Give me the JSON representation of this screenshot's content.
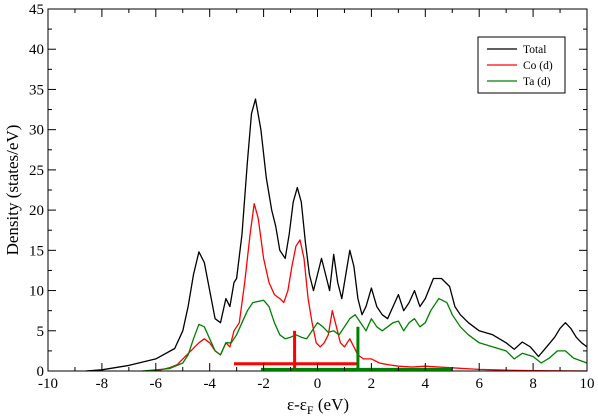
{
  "chart_data": {
    "type": "line",
    "title": "",
    "xlabel_main": "ε-ε",
    "xlabel_sub": "F",
    "xlabel_unit": " (eV)",
    "ylabel": "Density (states/eV)",
    "xlim": [
      -10,
      10
    ],
    "ylim": [
      0,
      45
    ],
    "x_ticks": [
      -10,
      -8,
      -6,
      -4,
      -2,
      0,
      2,
      4,
      6,
      8,
      10
    ],
    "y_ticks": [
      0,
      5,
      10,
      15,
      20,
      25,
      30,
      35,
      40,
      45
    ],
    "grid": false,
    "legend_position": "top-right",
    "series": [
      {
        "name": "Total",
        "color": "#000000",
        "points": [
          [
            -8.6,
            0.0
          ],
          [
            -8,
            0.15
          ],
          [
            -7,
            0.7
          ],
          [
            -6,
            1.5
          ],
          [
            -5.3,
            2.8
          ],
          [
            -5,
            5.0
          ],
          [
            -4.8,
            8.0
          ],
          [
            -4.6,
            12.0
          ],
          [
            -4.4,
            14.8
          ],
          [
            -4.2,
            13.5
          ],
          [
            -4.0,
            10.0
          ],
          [
            -3.8,
            6.5
          ],
          [
            -3.6,
            6.0
          ],
          [
            -3.4,
            9.0
          ],
          [
            -3.25,
            8.0
          ],
          [
            -3.1,
            11.0
          ],
          [
            -3.0,
            11.5
          ],
          [
            -2.8,
            17.0
          ],
          [
            -2.6,
            26.0
          ],
          [
            -2.45,
            32.0
          ],
          [
            -2.3,
            33.8
          ],
          [
            -2.1,
            30.0
          ],
          [
            -1.9,
            24.0
          ],
          [
            -1.7,
            20.0
          ],
          [
            -1.55,
            18.0
          ],
          [
            -1.4,
            15.0
          ],
          [
            -1.2,
            14.0
          ],
          [
            -1.05,
            17.0
          ],
          [
            -0.9,
            21.0
          ],
          [
            -0.75,
            22.8
          ],
          [
            -0.6,
            21.0
          ],
          [
            -0.45,
            16.0
          ],
          [
            -0.3,
            12.0
          ],
          [
            -0.15,
            10.0
          ],
          [
            0.0,
            12.0
          ],
          [
            0.15,
            14.0
          ],
          [
            0.3,
            12.0
          ],
          [
            0.45,
            10.0
          ],
          [
            0.6,
            14.5
          ],
          [
            0.75,
            11.0
          ],
          [
            0.9,
            9.0
          ],
          [
            1.05,
            12.0
          ],
          [
            1.2,
            15.0
          ],
          [
            1.35,
            13.0
          ],
          [
            1.5,
            9.0
          ],
          [
            1.65,
            7.0
          ],
          [
            1.8,
            8.0
          ],
          [
            2.0,
            10.3
          ],
          [
            2.2,
            8.0
          ],
          [
            2.4,
            7.0
          ],
          [
            2.6,
            6.5
          ],
          [
            2.8,
            8.0
          ],
          [
            3.0,
            9.5
          ],
          [
            3.2,
            7.5
          ],
          [
            3.4,
            8.5
          ],
          [
            3.6,
            10.0
          ],
          [
            3.8,
            8.0
          ],
          [
            4.0,
            9.0
          ],
          [
            4.3,
            11.5
          ],
          [
            4.6,
            11.5
          ],
          [
            4.9,
            10.5
          ],
          [
            5.1,
            8.0
          ],
          [
            5.3,
            7.0
          ],
          [
            5.6,
            6.0
          ],
          [
            6.0,
            5.0
          ],
          [
            6.5,
            4.5
          ],
          [
            7.0,
            3.5
          ],
          [
            7.3,
            2.7
          ],
          [
            7.6,
            3.6
          ],
          [
            7.9,
            3.0
          ],
          [
            8.2,
            1.8
          ],
          [
            8.5,
            3.0
          ],
          [
            8.8,
            4.2
          ],
          [
            9.0,
            5.3
          ],
          [
            9.2,
            6.0
          ],
          [
            9.4,
            5.3
          ],
          [
            9.6,
            4.2
          ],
          [
            9.8,
            3.5
          ],
          [
            10.0,
            3.0
          ]
        ]
      },
      {
        "name": "Co (d)",
        "color": "#ff0000",
        "points": [
          [
            -6.0,
            0.0
          ],
          [
            -5.5,
            0.4
          ],
          [
            -5.2,
            0.8
          ],
          [
            -5.0,
            1.5
          ],
          [
            -4.7,
            2.5
          ],
          [
            -4.4,
            3.5
          ],
          [
            -4.2,
            4.0
          ],
          [
            -4.0,
            3.5
          ],
          [
            -3.8,
            2.5
          ],
          [
            -3.6,
            2.0
          ],
          [
            -3.4,
            3.5
          ],
          [
            -3.25,
            3.0
          ],
          [
            -3.1,
            5.0
          ],
          [
            -2.9,
            6.0
          ],
          [
            -2.7,
            11.0
          ],
          [
            -2.5,
            17.0
          ],
          [
            -2.35,
            20.8
          ],
          [
            -2.2,
            19.0
          ],
          [
            -2.0,
            14.0
          ],
          [
            -1.8,
            11.0
          ],
          [
            -1.6,
            9.5
          ],
          [
            -1.4,
            9.0
          ],
          [
            -1.25,
            8.5
          ],
          [
            -1.1,
            10.0
          ],
          [
            -0.95,
            13.0
          ],
          [
            -0.8,
            15.5
          ],
          [
            -0.65,
            16.3
          ],
          [
            -0.5,
            14.0
          ],
          [
            -0.35,
            9.0
          ],
          [
            -0.2,
            6.0
          ],
          [
            -0.05,
            3.5
          ],
          [
            0.1,
            3.0
          ],
          [
            0.25,
            3.5
          ],
          [
            0.4,
            4.5
          ],
          [
            0.55,
            7.5
          ],
          [
            0.7,
            5.5
          ],
          [
            0.85,
            3.5
          ],
          [
            1.0,
            3.0
          ],
          [
            1.2,
            4.0
          ],
          [
            1.35,
            3.0
          ],
          [
            1.5,
            2.0
          ],
          [
            1.7,
            1.5
          ],
          [
            2.0,
            1.5
          ],
          [
            2.3,
            1.0
          ],
          [
            2.6,
            0.8
          ],
          [
            3.0,
            0.6
          ],
          [
            3.5,
            0.5
          ],
          [
            4.0,
            0.6
          ],
          [
            4.5,
            0.5
          ],
          [
            5.0,
            0.4
          ],
          [
            5.5,
            0.3
          ],
          [
            6.0,
            0.2
          ],
          [
            7.0,
            0.1
          ],
          [
            8.0,
            0.05
          ],
          [
            10.0,
            0.0
          ]
        ]
      },
      {
        "name": "Ta (d)",
        "color": "#008000",
        "points": [
          [
            -6.5,
            0.0
          ],
          [
            -5.5,
            0.3
          ],
          [
            -5.0,
            1.0
          ],
          [
            -4.8,
            2.0
          ],
          [
            -4.6,
            4.0
          ],
          [
            -4.4,
            5.8
          ],
          [
            -4.2,
            5.5
          ],
          [
            -4.0,
            4.0
          ],
          [
            -3.8,
            2.5
          ],
          [
            -3.6,
            2.0
          ],
          [
            -3.4,
            3.5
          ],
          [
            -3.2,
            3.5
          ],
          [
            -3.0,
            4.5
          ],
          [
            -2.8,
            6.0
          ],
          [
            -2.6,
            7.5
          ],
          [
            -2.4,
            8.5
          ],
          [
            -2.0,
            8.8
          ],
          [
            -1.8,
            8.0
          ],
          [
            -1.6,
            6.0
          ],
          [
            -1.4,
            4.5
          ],
          [
            -1.2,
            4.0
          ],
          [
            -1.0,
            4.2
          ],
          [
            -0.8,
            4.5
          ],
          [
            -0.6,
            4.2
          ],
          [
            -0.4,
            4.0
          ],
          [
            -0.2,
            5.0
          ],
          [
            0.0,
            6.0
          ],
          [
            0.2,
            5.5
          ],
          [
            0.4,
            4.8
          ],
          [
            0.6,
            5.0
          ],
          [
            0.8,
            4.5
          ],
          [
            1.0,
            5.5
          ],
          [
            1.2,
            6.5
          ],
          [
            1.4,
            7.0
          ],
          [
            1.6,
            6.0
          ],
          [
            1.8,
            5.0
          ],
          [
            2.0,
            6.5
          ],
          [
            2.2,
            5.5
          ],
          [
            2.4,
            5.0
          ],
          [
            2.6,
            5.5
          ],
          [
            2.8,
            6.0
          ],
          [
            3.0,
            6.2
          ],
          [
            3.2,
            5.0
          ],
          [
            3.4,
            6.0
          ],
          [
            3.6,
            6.5
          ],
          [
            3.8,
            5.5
          ],
          [
            4.0,
            6.0
          ],
          [
            4.2,
            7.5
          ],
          [
            4.5,
            9.0
          ],
          [
            4.8,
            8.5
          ],
          [
            5.0,
            7.0
          ],
          [
            5.3,
            5.5
          ],
          [
            5.6,
            4.5
          ],
          [
            6.0,
            3.5
          ],
          [
            6.5,
            3.0
          ],
          [
            7.0,
            2.5
          ],
          [
            7.3,
            1.5
          ],
          [
            7.6,
            2.2
          ],
          [
            8.0,
            1.8
          ],
          [
            8.3,
            1.0
          ],
          [
            8.6,
            1.6
          ],
          [
            8.9,
            2.5
          ],
          [
            9.2,
            2.5
          ],
          [
            9.5,
            1.6
          ],
          [
            10.0,
            1.0
          ]
        ]
      }
    ],
    "markers": [
      {
        "color": "#ff0000",
        "hline_y": 0.9,
        "hline_x": [
          -3.1,
          1.5
        ],
        "vline_x": -0.85,
        "vline_y": [
          0,
          5.0
        ]
      },
      {
        "color": "#008000",
        "hline_y": 0.2,
        "hline_x": [
          -2.1,
          5.0
        ],
        "vline_x": 1.5,
        "vline_y": [
          0,
          5.5
        ]
      }
    ]
  }
}
